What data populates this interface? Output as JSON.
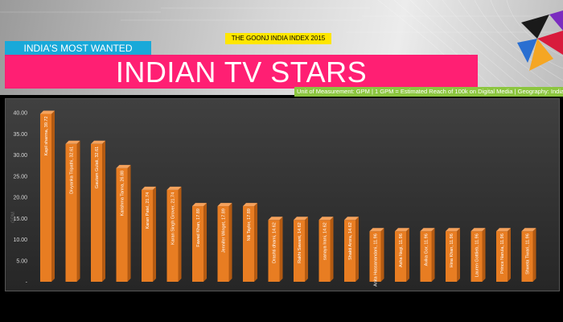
{
  "header": {
    "index_banner": "THE GOONJ INDIA INDEX 2015",
    "most_wanted": "INDIA'S MOST WANTED",
    "title": "INDIAN TV STARS",
    "measurement": "Unit of Measurement: GPM | 1 GPM = Estimated Reach of 100k on Digital Media | Geography: India"
  },
  "colors": {
    "bar": "#e87d22",
    "bar_dark": "#b35a12",
    "title_band": "#ff1f73",
    "most_wanted": "#19a9d9",
    "banner": "#ffe600",
    "measurement": "#8cc63f"
  },
  "chart_data": {
    "type": "bar",
    "categories": [
      "Kapil sharma",
      "Divyanka Tripathi",
      "Gautam Gulati",
      "Karishma Tanna",
      "Karan Patel",
      "Karan Singh Grover",
      "Fawad Khan",
      "Jennifer Winget",
      "Nili Taylor",
      "Drashti dhami",
      "Rakhi Sawant",
      "sanaya Irani",
      "Shakti Arora",
      "Anita Hassanandani",
      "Asha Negi",
      "Avika Gor",
      "Hina Khan",
      "Lauren Gottlieb",
      "Prince Narula",
      "Shweta Tiwari"
    ],
    "values": [
      39.72,
      32.61,
      32.61,
      26.88,
      21.74,
      21.74,
      17.89,
      17.89,
      17.89,
      14.62,
      14.62,
      14.62,
      14.62,
      11.96,
      11.96,
      11.96,
      11.96,
      11.96,
      11.96,
      11.96
    ],
    "bar_labels": [
      "Kapil sharma,  39.72",
      "Divyanka Tripathi,  32.61",
      "Gautam Gulati,  32.61",
      "Karishma Tanna,  26.88",
      "Karan Patel,  21.74",
      "Karan Singh Grover,  21.74",
      "Fawad Khan,  17.89",
      "Jennifer Winget,  17.89",
      "Nili Taylor,  17.89",
      "Drashti dhami,  14.62",
      "Rakhi Sawant,  14.62",
      "sanaya Irani,  14.62",
      "Shakti Arora,  14.62",
      "Anita Hassanandani,  11.96",
      "Asha Negi,  11.96",
      "Avika Gor,  11.96",
      "Hina Khan,  11.96",
      "Lauren Gottlieb,  11.96",
      "Prince Narula,  11.96",
      "Shweta Tiwari,  11.96"
    ],
    "yticks": [
      "40.00",
      "35.00",
      "30.00",
      "25.00",
      "20.00",
      "15.00",
      "10.00",
      "5.00",
      "-"
    ],
    "ylim": [
      0,
      40
    ],
    "ylabel": "GPM",
    "grid": false,
    "legend": "none"
  }
}
